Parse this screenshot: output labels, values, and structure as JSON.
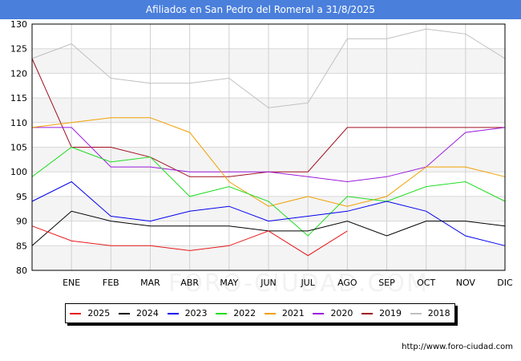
{
  "title": "Afiliados en San Pedro del Romeral a 31/8/2025",
  "source": "http://www.foro-ciudad.com",
  "watermark": "FORO-CIUDAD.COM",
  "chart_data": {
    "type": "line",
    "title": "Afiliados en San Pedro del Romeral a 31/8/2025",
    "categories": [
      "",
      "ENE",
      "FEB",
      "MAR",
      "ABR",
      "MAY",
      "JUN",
      "JUL",
      "AGO",
      "SEP",
      "OCT",
      "NOV",
      "DIC"
    ],
    "ylim": [
      80,
      130
    ],
    "yticks": [
      80,
      85,
      90,
      95,
      100,
      105,
      110,
      115,
      120,
      125,
      130
    ],
    "grid": true,
    "legend_position": "bottom",
    "series": [
      {
        "name": "2025",
        "color": "#e8181a",
        "values": [
          89,
          86,
          85,
          85,
          84,
          85,
          88,
          83,
          88,
          null,
          null,
          null,
          null
        ]
      },
      {
        "name": "2024",
        "color": "#000000",
        "values": [
          85,
          92,
          90,
          89,
          89,
          89,
          88,
          88,
          90,
          87,
          90,
          90,
          89
        ]
      },
      {
        "name": "2023",
        "color": "#0000ee",
        "values": [
          94,
          98,
          91,
          90,
          92,
          93,
          90,
          91,
          92,
          94,
          92,
          87,
          85
        ]
      },
      {
        "name": "2022",
        "color": "#22dd22",
        "values": [
          99,
          105,
          102,
          103,
          95,
          97,
          94,
          87,
          95,
          94,
          97,
          98,
          94
        ]
      },
      {
        "name": "2021",
        "color": "#f0a000",
        "values": [
          109,
          110,
          111,
          111,
          108,
          98,
          93,
          95,
          93,
          95,
          101,
          101,
          99
        ]
      },
      {
        "name": "2020",
        "color": "#9a1adc",
        "values": [
          109,
          109,
          101,
          101,
          100,
          100,
          100,
          99,
          98,
          99,
          101,
          108,
          109
        ]
      },
      {
        "name": "2019",
        "color": "#a01020",
        "values": [
          123,
          105,
          105,
          103,
          99,
          99,
          100,
          100,
          109,
          109,
          109,
          109,
          109
        ]
      },
      {
        "name": "2018",
        "color": "#c0c0c0",
        "values": [
          123,
          126,
          119,
          118,
          118,
          119,
          113,
          114,
          127,
          127,
          129,
          128,
          123
        ]
      }
    ]
  }
}
